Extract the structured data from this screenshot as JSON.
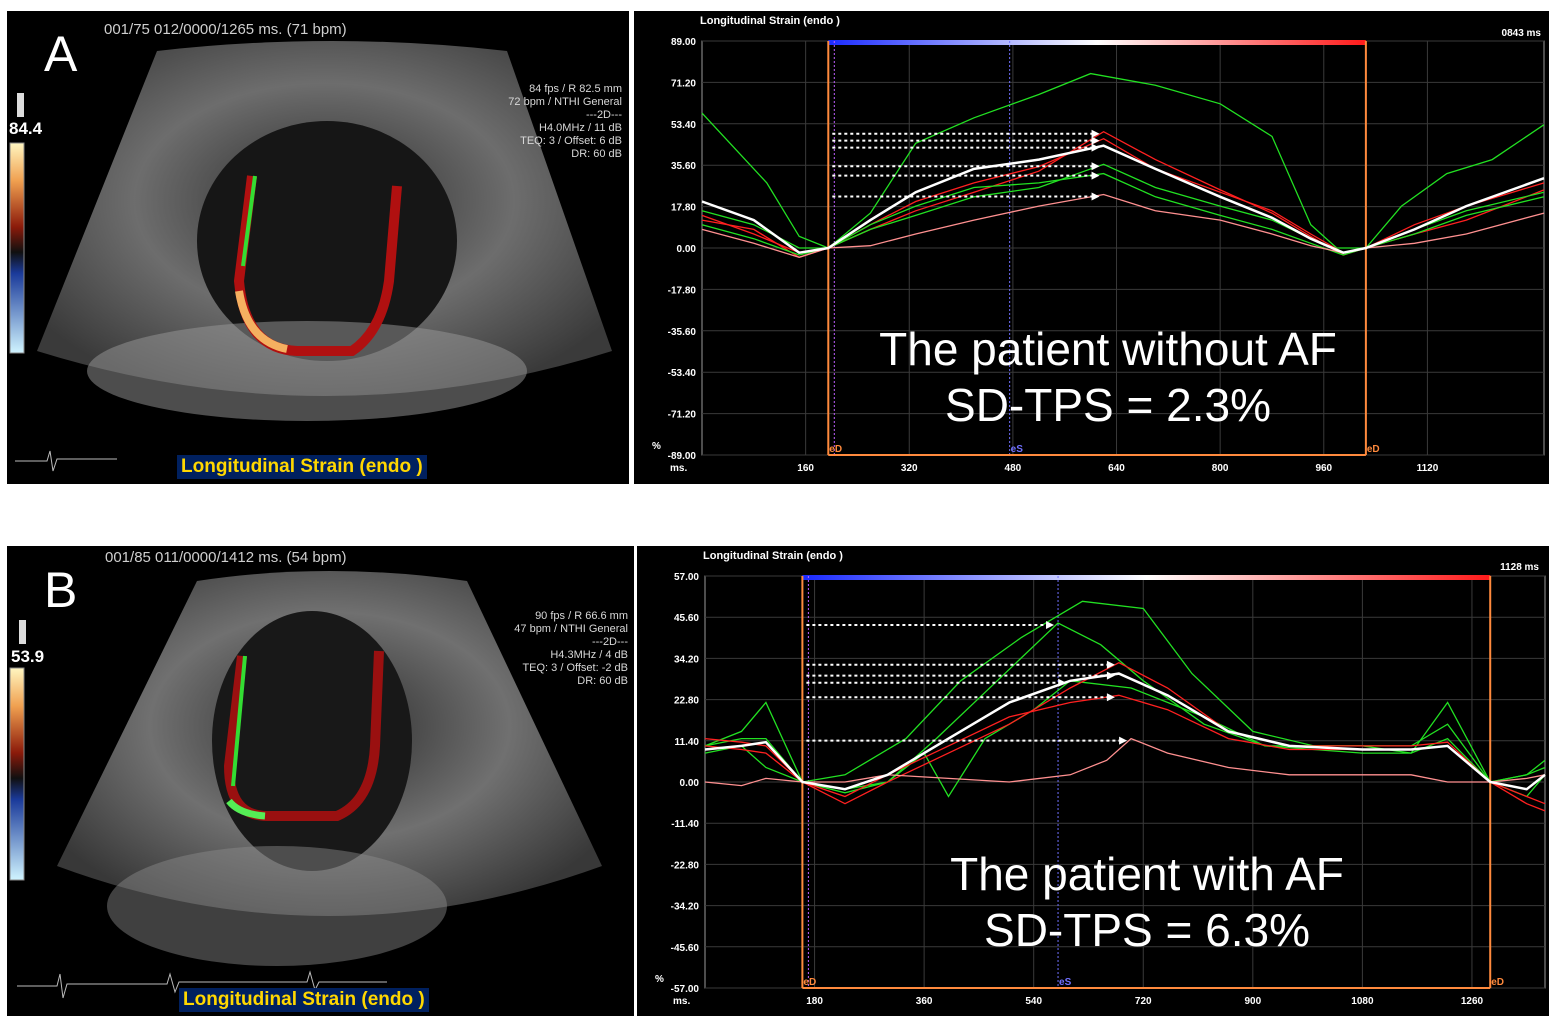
{
  "panel_a": {
    "letter": "A",
    "header": "001/75  012/0000/1265 ms.  (71 bpm)",
    "gain": "84.4",
    "params": [
      "84 fps / R 82.5 mm",
      "72 bpm / NTHI General",
      "---2D---",
      "H4.0MHz / 11 dB",
      "TEQ: 3 / Offset: 6 dB",
      "DR: 60 dB"
    ],
    "depth": "82.5",
    "mode_label": "Longitudinal Strain (endo )"
  },
  "panel_b": {
    "letter": "B",
    "header": "001/85  011/0000/1412 ms.  (54 bpm)",
    "gain": "53.9",
    "params": [
      "90 fps / R 66.6 mm",
      "47 bpm / NTHI General",
      "---2D---",
      "H4.3MHz / 4 dB",
      "TEQ: 3 / Offset: -2 dB",
      "DR: 60 dB"
    ],
    "depth": "66.6",
    "mode_label": "Longitudinal Strain (endo )"
  },
  "chart_a": {
    "title": "Longitudinal Strain (endo )",
    "duration": "0843 ms",
    "annotation": [
      "The patient without AF",
      "SD-TPS = 2.3%"
    ],
    "y_unit": "%",
    "x_unit": "ms.",
    "marker_labels": [
      "eD",
      "eS",
      "eD"
    ]
  },
  "chart_b": {
    "title": "Longitudinal Strain (endo )",
    "duration": "1128 ms",
    "annotation": [
      "The patient with AF",
      "SD-TPS = 6.3%"
    ],
    "y_unit": "%",
    "x_unit": "ms.",
    "marker_labels": [
      "eD",
      "eS",
      "eD"
    ]
  },
  "colors": {
    "strain_red": "#ff2020",
    "strain_green": "#22e022",
    "average_white": "#ffffff",
    "marker_orange": "#ff8a3d",
    "es_line": "#7070ff",
    "ecg_green": "#22c022",
    "mode_bar_bg": "#00205f",
    "mode_bar_text": "#ffd700"
  },
  "chart_data": [
    {
      "type": "line",
      "title": "Longitudinal Strain (endo )",
      "ylabel": "%",
      "xlabel": "ms.",
      "ylim": [
        -89,
        89
      ],
      "xlim": [
        0,
        1300
      ],
      "y_ticks": [
        "89.00",
        "71.20",
        "53.40",
        "35.60",
        "17.80",
        "0.00",
        "-17.80",
        "-35.60",
        "-53.40",
        "-71.20",
        "-89.00"
      ],
      "x_ticks": [
        "160",
        "320",
        "480",
        "640",
        "800",
        "960",
        "1120"
      ],
      "markers": {
        "eD1": 195,
        "eS": 475,
        "eD2": 1025
      },
      "grid": true,
      "series": [
        {
          "color": "#22e022",
          "x": [
            0,
            100,
            150,
            195,
            260,
            330,
            420,
            520,
            600,
            700,
            800,
            880,
            940,
            980,
            1025,
            1080,
            1150,
            1220,
            1300
          ],
          "y": [
            58,
            28,
            5,
            0,
            15,
            45,
            56,
            66,
            75,
            70,
            62,
            48,
            10,
            0,
            0,
            18,
            32,
            38,
            53
          ]
        },
        {
          "color": "#ff2020",
          "x": [
            0,
            80,
            150,
            195,
            260,
            330,
            420,
            520,
            620,
            700,
            800,
            880,
            940,
            990,
            1025,
            1100,
            1180,
            1300
          ],
          "y": [
            12,
            8,
            -4,
            0,
            8,
            16,
            24,
            33,
            50,
            38,
            25,
            15,
            5,
            -3,
            0,
            6,
            12,
            25
          ]
        },
        {
          "color": "#ff2020",
          "x": [
            0,
            80,
            150,
            195,
            260,
            330,
            420,
            520,
            620,
            700,
            800,
            880,
            940,
            990,
            1025,
            1100,
            1180,
            1300
          ],
          "y": [
            14,
            6,
            -2,
            0,
            10,
            20,
            28,
            35,
            47,
            34,
            24,
            16,
            6,
            -2,
            0,
            10,
            18,
            28
          ]
        },
        {
          "color": "#22e022",
          "x": [
            0,
            80,
            150,
            195,
            260,
            330,
            420,
            520,
            620,
            700,
            800,
            880,
            940,
            990,
            1025,
            1100,
            1180,
            1300
          ],
          "y": [
            10,
            4,
            -3,
            0,
            8,
            14,
            22,
            26,
            36,
            26,
            18,
            12,
            4,
            -2,
            0,
            8,
            16,
            24
          ]
        },
        {
          "color": "#22e022",
          "x": [
            0,
            80,
            150,
            195,
            260,
            330,
            420,
            520,
            620,
            700,
            800,
            880,
            940,
            990,
            1025,
            1100,
            1180,
            1300
          ],
          "y": [
            16,
            10,
            0,
            0,
            10,
            18,
            26,
            28,
            32,
            22,
            14,
            8,
            2,
            -3,
            0,
            6,
            14,
            22
          ]
        },
        {
          "color": "#ff9090",
          "x": [
            0,
            80,
            150,
            195,
            260,
            330,
            420,
            520,
            620,
            700,
            800,
            880,
            940,
            990,
            1025,
            1100,
            1180,
            1300
          ],
          "y": [
            8,
            2,
            -4,
            0,
            1,
            6,
            12,
            18,
            23,
            16,
            12,
            6,
            1,
            -2,
            0,
            2,
            6,
            15
          ]
        },
        {
          "color": "#ffffff",
          "x": [
            0,
            80,
            150,
            195,
            260,
            330,
            420,
            520,
            620,
            700,
            800,
            880,
            940,
            990,
            1025,
            1100,
            1180,
            1300
          ],
          "y": [
            20,
            12,
            -2,
            0,
            12,
            24,
            34,
            38,
            44,
            34,
            22,
            13,
            4,
            -2,
            0,
            8,
            18,
            30
          ]
        }
      ]
    },
    {
      "type": "line",
      "title": "Longitudinal Strain (endo )",
      "ylabel": "%",
      "xlabel": "ms.",
      "ylim": [
        -57,
        57
      ],
      "xlim": [
        0,
        1380
      ],
      "y_ticks": [
        "57.00",
        "45.60",
        "34.20",
        "22.80",
        "11.40",
        "0.00",
        "-11.40",
        "-22.80",
        "-34.20",
        "-45.60",
        "-57.00"
      ],
      "x_ticks": [
        "180",
        "360",
        "540",
        "720",
        "900",
        "1080",
        "1260"
      ],
      "markers": {
        "eD1": 160,
        "eS": 580,
        "eD2": 1290
      },
      "grid": true,
      "series": [
        {
          "color": "#22e022",
          "x": [
            0,
            60,
            100,
            160,
            230,
            330,
            420,
            520,
            620,
            720,
            800,
            900,
            1000,
            1080,
            1160,
            1220,
            1290,
            1350,
            1380
          ],
          "y": [
            8,
            10,
            4,
            0,
            2,
            12,
            28,
            40,
            50,
            48,
            30,
            14,
            10,
            10,
            8,
            22,
            0,
            2,
            6
          ]
        },
        {
          "color": "#22e022",
          "x": [
            0,
            60,
            100,
            160,
            230,
            300,
            380,
            480,
            580,
            650,
            720,
            820,
            920,
            1080,
            1160,
            1220,
            1290,
            1350,
            1380
          ],
          "y": [
            10,
            14,
            22,
            0,
            -2,
            0,
            12,
            28,
            44,
            38,
            28,
            16,
            10,
            10,
            10,
            16,
            0,
            -4,
            2
          ]
        },
        {
          "color": "#22e022",
          "x": [
            0,
            60,
            100,
            160,
            230,
            300,
            360,
            400,
            460,
            540,
            600,
            700,
            820,
            920,
            1080,
            1160,
            1220,
            1290,
            1350,
            1380
          ],
          "y": [
            10,
            12,
            12,
            0,
            -3,
            0,
            8,
            -4,
            12,
            20,
            28,
            26,
            18,
            10,
            8,
            8,
            12,
            0,
            2,
            4
          ]
        },
        {
          "color": "#ff2020",
          "x": [
            0,
            60,
            100,
            160,
            230,
            300,
            400,
            500,
            600,
            680,
            760,
            860,
            960,
            1080,
            1160,
            1220,
            1290,
            1350,
            1380
          ],
          "y": [
            12,
            11,
            10,
            0,
            -6,
            0,
            8,
            16,
            26,
            33,
            26,
            14,
            10,
            10,
            10,
            11,
            0,
            -6,
            -8
          ]
        },
        {
          "color": "#ff2020",
          "x": [
            0,
            60,
            100,
            160,
            230,
            300,
            400,
            500,
            600,
            680,
            760,
            860,
            960,
            1080,
            1160,
            1220,
            1290,
            1350,
            1380
          ],
          "y": [
            10,
            9,
            8,
            0,
            -4,
            2,
            10,
            18,
            22,
            24,
            20,
            12,
            9,
            9,
            9,
            10,
            0,
            -4,
            -6
          ]
        },
        {
          "color": "#ff9090",
          "x": [
            0,
            60,
            100,
            160,
            230,
            300,
            400,
            500,
            600,
            660,
            700,
            760,
            860,
            960,
            1080,
            1160,
            1220,
            1290,
            1350,
            1380
          ],
          "y": [
            0,
            -1,
            1,
            0,
            0,
            2,
            1,
            0,
            2,
            6,
            12,
            8,
            4,
            2,
            2,
            2,
            0,
            0,
            1,
            2
          ]
        },
        {
          "color": "#ffffff",
          "x": [
            0,
            60,
            100,
            160,
            230,
            300,
            400,
            500,
            600,
            680,
            760,
            860,
            960,
            1080,
            1160,
            1220,
            1290,
            1350,
            1380
          ],
          "y": [
            9,
            10,
            11,
            0,
            -2,
            2,
            12,
            22,
            28,
            30,
            24,
            14,
            10,
            9,
            9,
            10,
            0,
            -2,
            2
          ]
        }
      ]
    }
  ]
}
